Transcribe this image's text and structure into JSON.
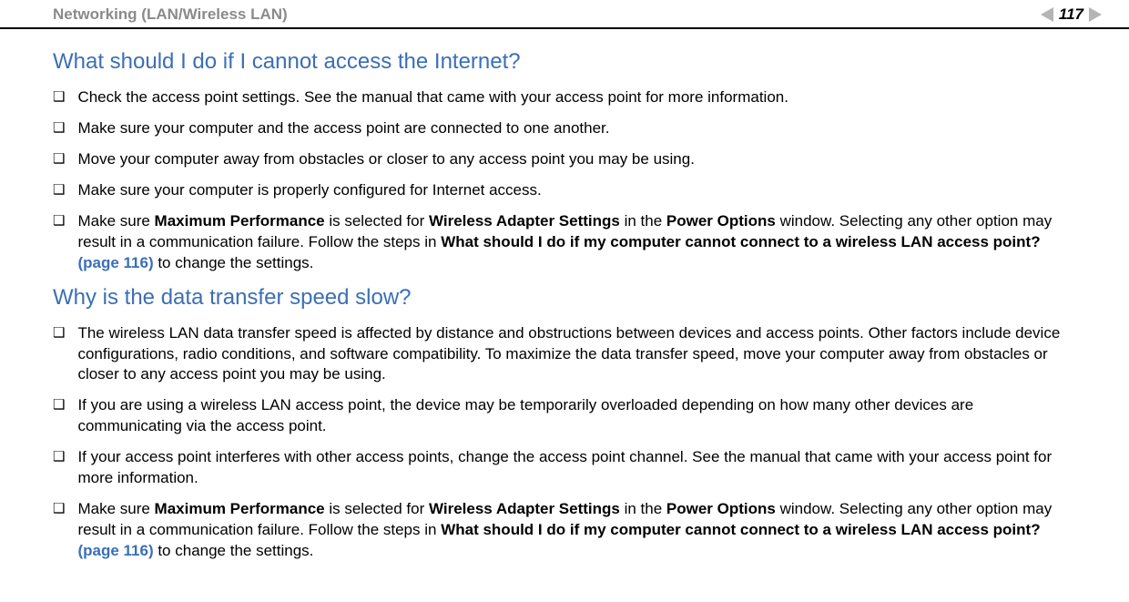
{
  "header": {
    "title": "Networking (LAN/Wireless LAN)",
    "page_number": "117"
  },
  "colors": {
    "heading": "#3b6fb5",
    "header_title": "#8a8a8a",
    "nav_arrow": "#b5b5b5",
    "body_text": "#000000",
    "link": "#3b6fb5",
    "background": "#ffffff"
  },
  "sections": [
    {
      "heading": "What should I do if I cannot access the Internet?",
      "items": [
        {
          "runs": [
            {
              "t": "Check the access point settings. See the manual that came with your access point for more information."
            }
          ]
        },
        {
          "runs": [
            {
              "t": "Make sure your computer and the access point are connected to one another."
            }
          ]
        },
        {
          "runs": [
            {
              "t": "Move your computer away from obstacles or closer to any access point you may be using."
            }
          ]
        },
        {
          "runs": [
            {
              "t": "Make sure your computer is properly configured for Internet access."
            }
          ]
        },
        {
          "runs": [
            {
              "t": "Make sure "
            },
            {
              "t": "Maximum Performance",
              "bold": true
            },
            {
              "t": " is selected for "
            },
            {
              "t": "Wireless Adapter Settings",
              "bold": true
            },
            {
              "t": " in the "
            },
            {
              "t": "Power Options",
              "bold": true
            },
            {
              "t": " window. Selecting any other option may result in a communication failure. Follow the steps in "
            },
            {
              "t": "What should I do if my computer cannot connect to a wireless LAN access point?",
              "bold": true
            },
            {
              "t": " "
            },
            {
              "t": "(page 116)",
              "link": true
            },
            {
              "t": " to change the settings."
            }
          ]
        }
      ]
    },
    {
      "heading": "Why is the data transfer speed slow?",
      "items": [
        {
          "runs": [
            {
              "t": "The wireless LAN data transfer speed is affected by distance and obstructions between devices and access points. Other factors include device configurations, radio conditions, and software compatibility. To maximize the data transfer speed, move your computer away from obstacles or closer to any access point you may be using."
            }
          ]
        },
        {
          "runs": [
            {
              "t": "If you are using a wireless LAN access point, the device may be temporarily overloaded depending on how many other devices are communicating via the access point."
            }
          ]
        },
        {
          "runs": [
            {
              "t": "If your access point interferes with other access points, change the access point channel. See the manual that came with your access point for more information."
            }
          ]
        },
        {
          "runs": [
            {
              "t": "Make sure "
            },
            {
              "t": "Maximum Performance",
              "bold": true
            },
            {
              "t": " is selected for "
            },
            {
              "t": "Wireless Adapter Settings",
              "bold": true
            },
            {
              "t": " in the "
            },
            {
              "t": "Power Options",
              "bold": true
            },
            {
              "t": " window. Selecting any other option may result in a communication failure. Follow the steps in "
            },
            {
              "t": "What should I do if my computer cannot connect to a wireless LAN access point?",
              "bold": true
            },
            {
              "t": " "
            },
            {
              "t": "(page 116)",
              "link": true
            },
            {
              "t": " to change the settings."
            }
          ]
        }
      ]
    }
  ],
  "bullet_glyph": "❑"
}
